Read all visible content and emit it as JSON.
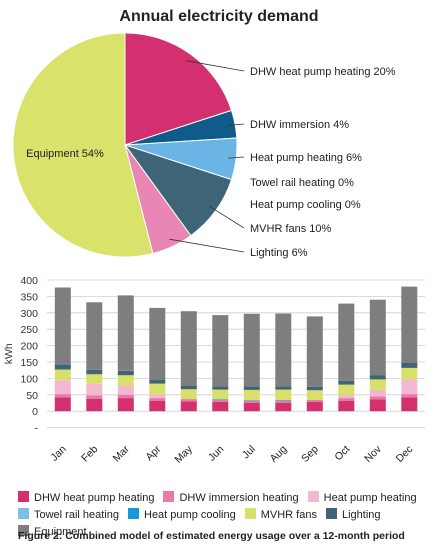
{
  "chart_data": [
    {
      "type": "pie",
      "title": "Annual electricity demand",
      "slices": [
        {
          "label": "DHW heat pump heating 20%",
          "value": 20,
          "color": "#d42f6e"
        },
        {
          "label": "DHW immersion 4%",
          "value": 4,
          "color": "#0f5b8a"
        },
        {
          "label": "Heat pump heating 6%",
          "value": 6,
          "color": "#6ab4e6"
        },
        {
          "label": "Towel rail heating 0%",
          "value": 0,
          "color": "#3aa0dc"
        },
        {
          "label": "Heat pump cooling 0%",
          "value": 0,
          "color": "#1e86c8"
        },
        {
          "label": "MVHR fans 10%",
          "value": 10,
          "color": "#3d6477"
        },
        {
          "label": "Lighting 6%",
          "value": 6,
          "color": "#e986b6"
        },
        {
          "label": "Equipment 54%",
          "value": 54,
          "color": "#d9e26b"
        }
      ]
    },
    {
      "type": "bar",
      "stacked": true,
      "ylabel": "kWh",
      "ylim": [
        0,
        400
      ],
      "yticks": [
        "400",
        "350",
        "300",
        "250",
        "200",
        "150",
        "100",
        "50",
        "0",
        "-"
      ],
      "categories": [
        "Jan",
        "Feb",
        "Mar",
        "Apr",
        "May",
        "Jun",
        "Jul",
        "Aug",
        "Sep",
        "Oct",
        "Nov",
        "Dec"
      ],
      "grid": true,
      "series": [
        {
          "name": "DHW heat pump heating",
          "color": "#d42f6e",
          "values": [
            42,
            38,
            40,
            32,
            30,
            28,
            25,
            26,
            28,
            32,
            36,
            42
          ]
        },
        {
          "name": "DHW immersion heating",
          "color": "#e77ba6",
          "values": [
            10,
            10,
            10,
            8,
            7,
            6,
            6,
            6,
            6,
            8,
            9,
            10
          ]
        },
        {
          "name": "Heat pump heating",
          "color": "#f3b6d3",
          "values": [
            42,
            35,
            28,
            12,
            0,
            0,
            0,
            0,
            0,
            8,
            20,
            45
          ]
        },
        {
          "name": "Towel rail heating",
          "color": "#7cc0ea",
          "values": [
            0,
            0,
            0,
            0,
            0,
            0,
            0,
            0,
            0,
            0,
            0,
            0
          ]
        },
        {
          "name": "Heat pump cooling",
          "color": "#139ad8",
          "values": [
            0,
            0,
            0,
            0,
            0,
            2,
            2,
            2,
            0,
            0,
            0,
            0
          ]
        },
        {
          "name": "MVHR fans",
          "color": "#d6e06a",
          "values": [
            33,
            30,
            32,
            32,
            30,
            30,
            32,
            32,
            30,
            33,
            32,
            35
          ]
        },
        {
          "name": "Lighting",
          "color": "#3f6478",
          "values": [
            15,
            13,
            13,
            11,
            10,
            10,
            10,
            10,
            10,
            12,
            13,
            15
          ]
        },
        {
          "name": "Equipment",
          "color": "#7e7e7e",
          "values": [
            235,
            206,
            230,
            220,
            228,
            217,
            222,
            222,
            215,
            235,
            230,
            233
          ]
        }
      ]
    }
  ],
  "caption": "Figure 2: Combined model of estimated energy usage over a 12-month period"
}
